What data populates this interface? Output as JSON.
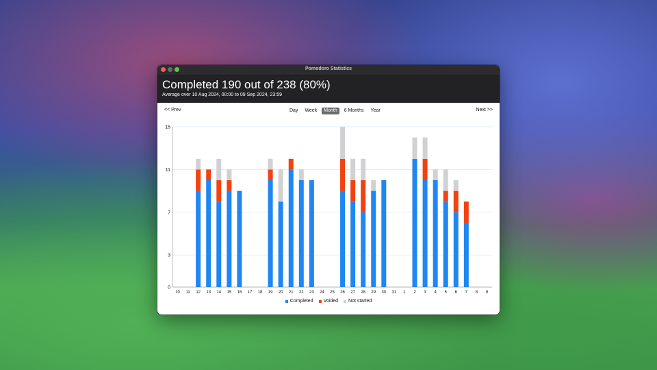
{
  "window": {
    "title": "Pomodoro Statistics"
  },
  "header": {
    "headline": "Completed 190 out of 238 (80%)",
    "subline": "Average over 10 Aug 2024, 00:00 to 09 Sep 2024, 23:59"
  },
  "nav": {
    "prev_label": "<< Prev",
    "next_label": ">> ",
    "next_text": "Next >>",
    "periods": [
      "Day",
      "Week",
      "Month",
      "6 Months",
      "Year"
    ],
    "active_period": "Month"
  },
  "colors": {
    "completed": "#1f86f2",
    "voided": "#f2420f",
    "not_started": "#d1d1d3"
  },
  "chart_data": {
    "type": "bar",
    "stacked": true,
    "categories": [
      "10",
      "11",
      "12",
      "13",
      "14",
      "15",
      "16",
      "17",
      "18",
      "19",
      "20",
      "21",
      "22",
      "23",
      "24",
      "25",
      "26",
      "27",
      "28",
      "29",
      "30",
      "31",
      "1",
      "2",
      "3",
      "4",
      "5",
      "6",
      "7",
      "8",
      "9"
    ],
    "series": [
      {
        "name": "Completed",
        "values": [
          0,
          0,
          9,
          10,
          8,
          9,
          9,
          0,
          0,
          10,
          8,
          11,
          10,
          10,
          0,
          0,
          9,
          8,
          7,
          9,
          10,
          0,
          0,
          12,
          10,
          10,
          8,
          7,
          6,
          0,
          0
        ]
      },
      {
        "name": "Voided",
        "values": [
          0,
          0,
          2,
          1,
          2,
          1,
          0,
          0,
          0,
          1,
          0,
          1,
          0,
          0,
          0,
          0,
          3,
          2,
          3,
          0,
          0,
          0,
          0,
          0,
          2,
          0,
          1,
          2,
          2,
          0,
          0
        ]
      },
      {
        "name": "Not started",
        "values": [
          0,
          0,
          1,
          0,
          2,
          1,
          0,
          0,
          0,
          1,
          3,
          0,
          1,
          0,
          0,
          0,
          3,
          2,
          2,
          1,
          0,
          0,
          0,
          2,
          2,
          1,
          2,
          1,
          0,
          0,
          0
        ]
      }
    ],
    "yticks": [
      0,
      3,
      7,
      11,
      15
    ],
    "ylim": [
      0,
      15
    ],
    "grid": true,
    "legend": "bottom-center"
  }
}
